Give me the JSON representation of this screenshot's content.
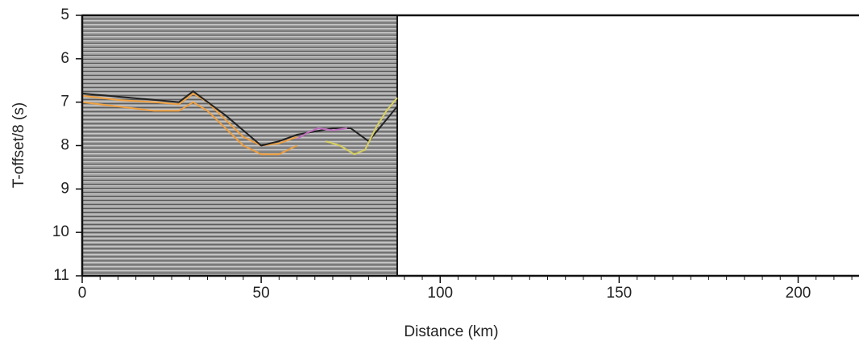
{
  "chart_data": {
    "type": "line",
    "xlabel": "Distance (km)",
    "ylabel": "T-offset/8 (s)",
    "xlim": [
      0,
      217
    ],
    "ylim": [
      5,
      11
    ],
    "y_reversed": true,
    "xticks": [
      0,
      50,
      100,
      150,
      200
    ],
    "xminorticks": [
      5,
      10,
      15,
      20,
      25,
      30,
      35,
      40,
      45,
      55,
      60,
      65,
      70,
      75,
      80,
      85,
      90,
      95,
      105,
      110,
      115,
      120,
      125,
      130,
      135,
      140,
      145,
      155,
      160,
      165,
      170,
      175,
      180,
      185,
      190,
      195,
      205,
      210,
      215
    ],
    "yticks": [
      5,
      6,
      7,
      8,
      9,
      10,
      11
    ],
    "section": {
      "xlim": [
        0,
        88
      ],
      "color": "#9a9a9a"
    },
    "series": [
      {
        "color": "#f0a040",
        "x": [
          0,
          10,
          20,
          27,
          31,
          35,
          40,
          45,
          50,
          55,
          60
        ],
        "values": [
          6.85,
          6.95,
          7.0,
          7.05,
          6.8,
          7.0,
          7.4,
          7.8,
          8.0,
          7.95,
          7.8
        ]
      },
      {
        "color": "#f0a040",
        "x": [
          0,
          10,
          20,
          27,
          31,
          35,
          40,
          45,
          50,
          55,
          60
        ],
        "values": [
          7.0,
          7.1,
          7.2,
          7.2,
          7.0,
          7.2,
          7.6,
          8.0,
          8.2,
          8.2,
          8.0
        ]
      },
      {
        "color": "#222222",
        "x": [
          0,
          27,
          31,
          40,
          50,
          55,
          60,
          70,
          75,
          80,
          85,
          88
        ],
        "values": [
          6.8,
          7.0,
          6.75,
          7.3,
          8.0,
          7.9,
          7.75,
          7.6,
          7.6,
          7.9,
          7.4,
          7.1
        ]
      },
      {
        "color": "#c070c0",
        "x": [
          60,
          63,
          66,
          70,
          74
        ],
        "values": [
          7.85,
          7.7,
          7.6,
          7.65,
          7.6
        ]
      },
      {
        "color": "#d8d060",
        "x": [
          68,
          72,
          76,
          79,
          82,
          85,
          88
        ],
        "values": [
          7.9,
          8.0,
          8.2,
          8.1,
          7.6,
          7.2,
          6.9
        ]
      }
    ]
  }
}
